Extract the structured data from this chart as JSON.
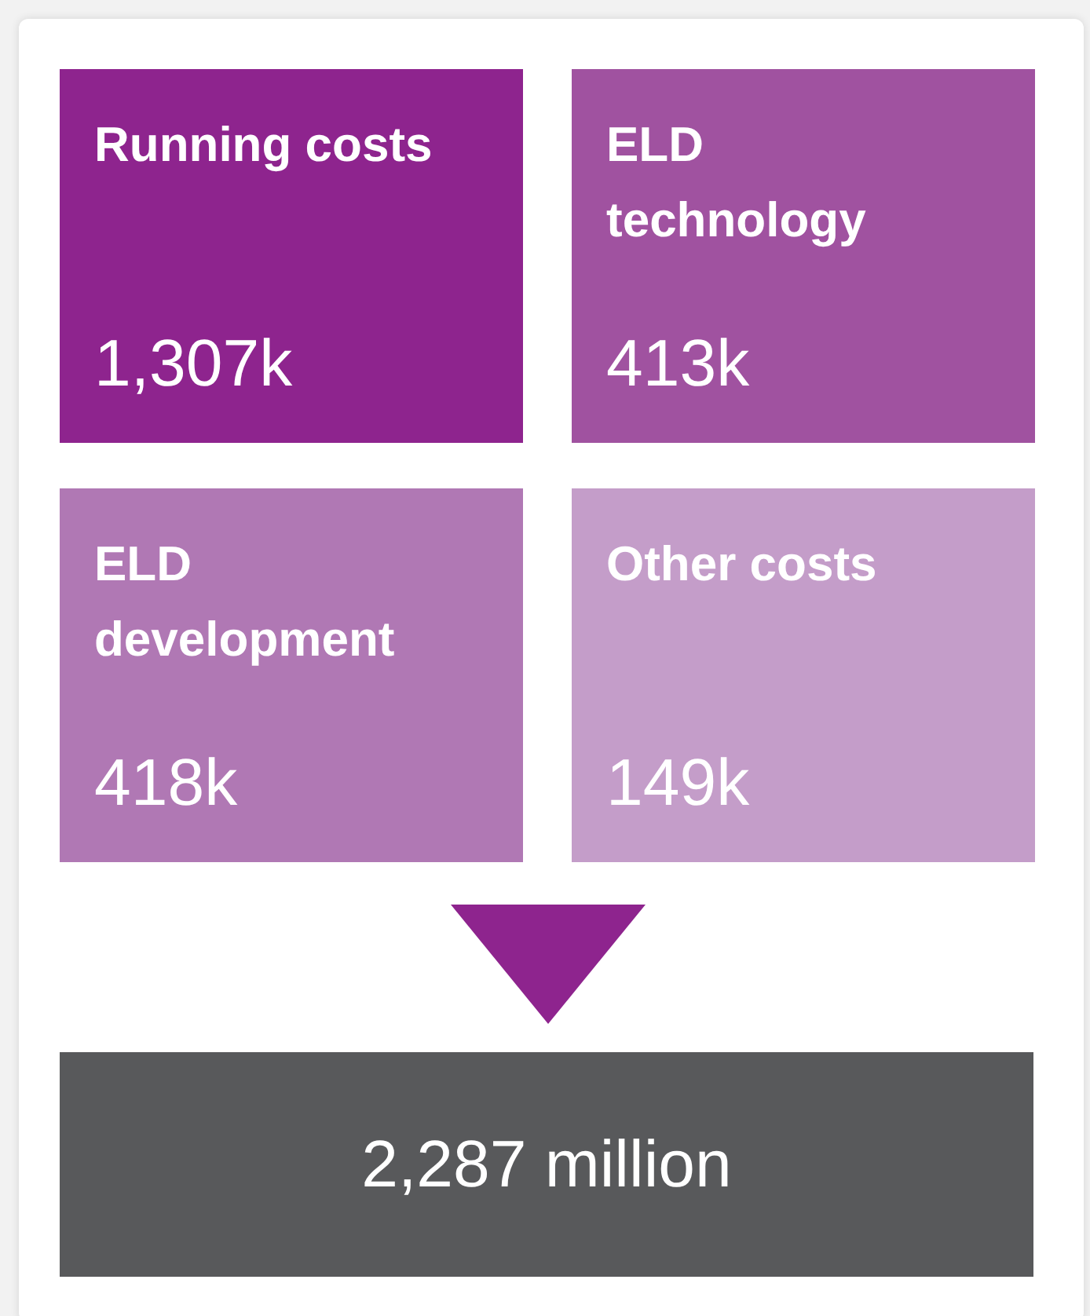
{
  "chart_data": {
    "type": "other",
    "categories": [
      "Running costs",
      "ELD technology",
      "ELD development",
      "Other costs"
    ],
    "values": [
      1307,
      413,
      418,
      149
    ],
    "value_labels": [
      "1,307k",
      "413k",
      "418k",
      "149k"
    ],
    "colors": [
      "#8e248e",
      "#a052a0",
      "#b078b4",
      "#c49dc9"
    ],
    "totals": [
      "2,287 million"
    ]
  }
}
